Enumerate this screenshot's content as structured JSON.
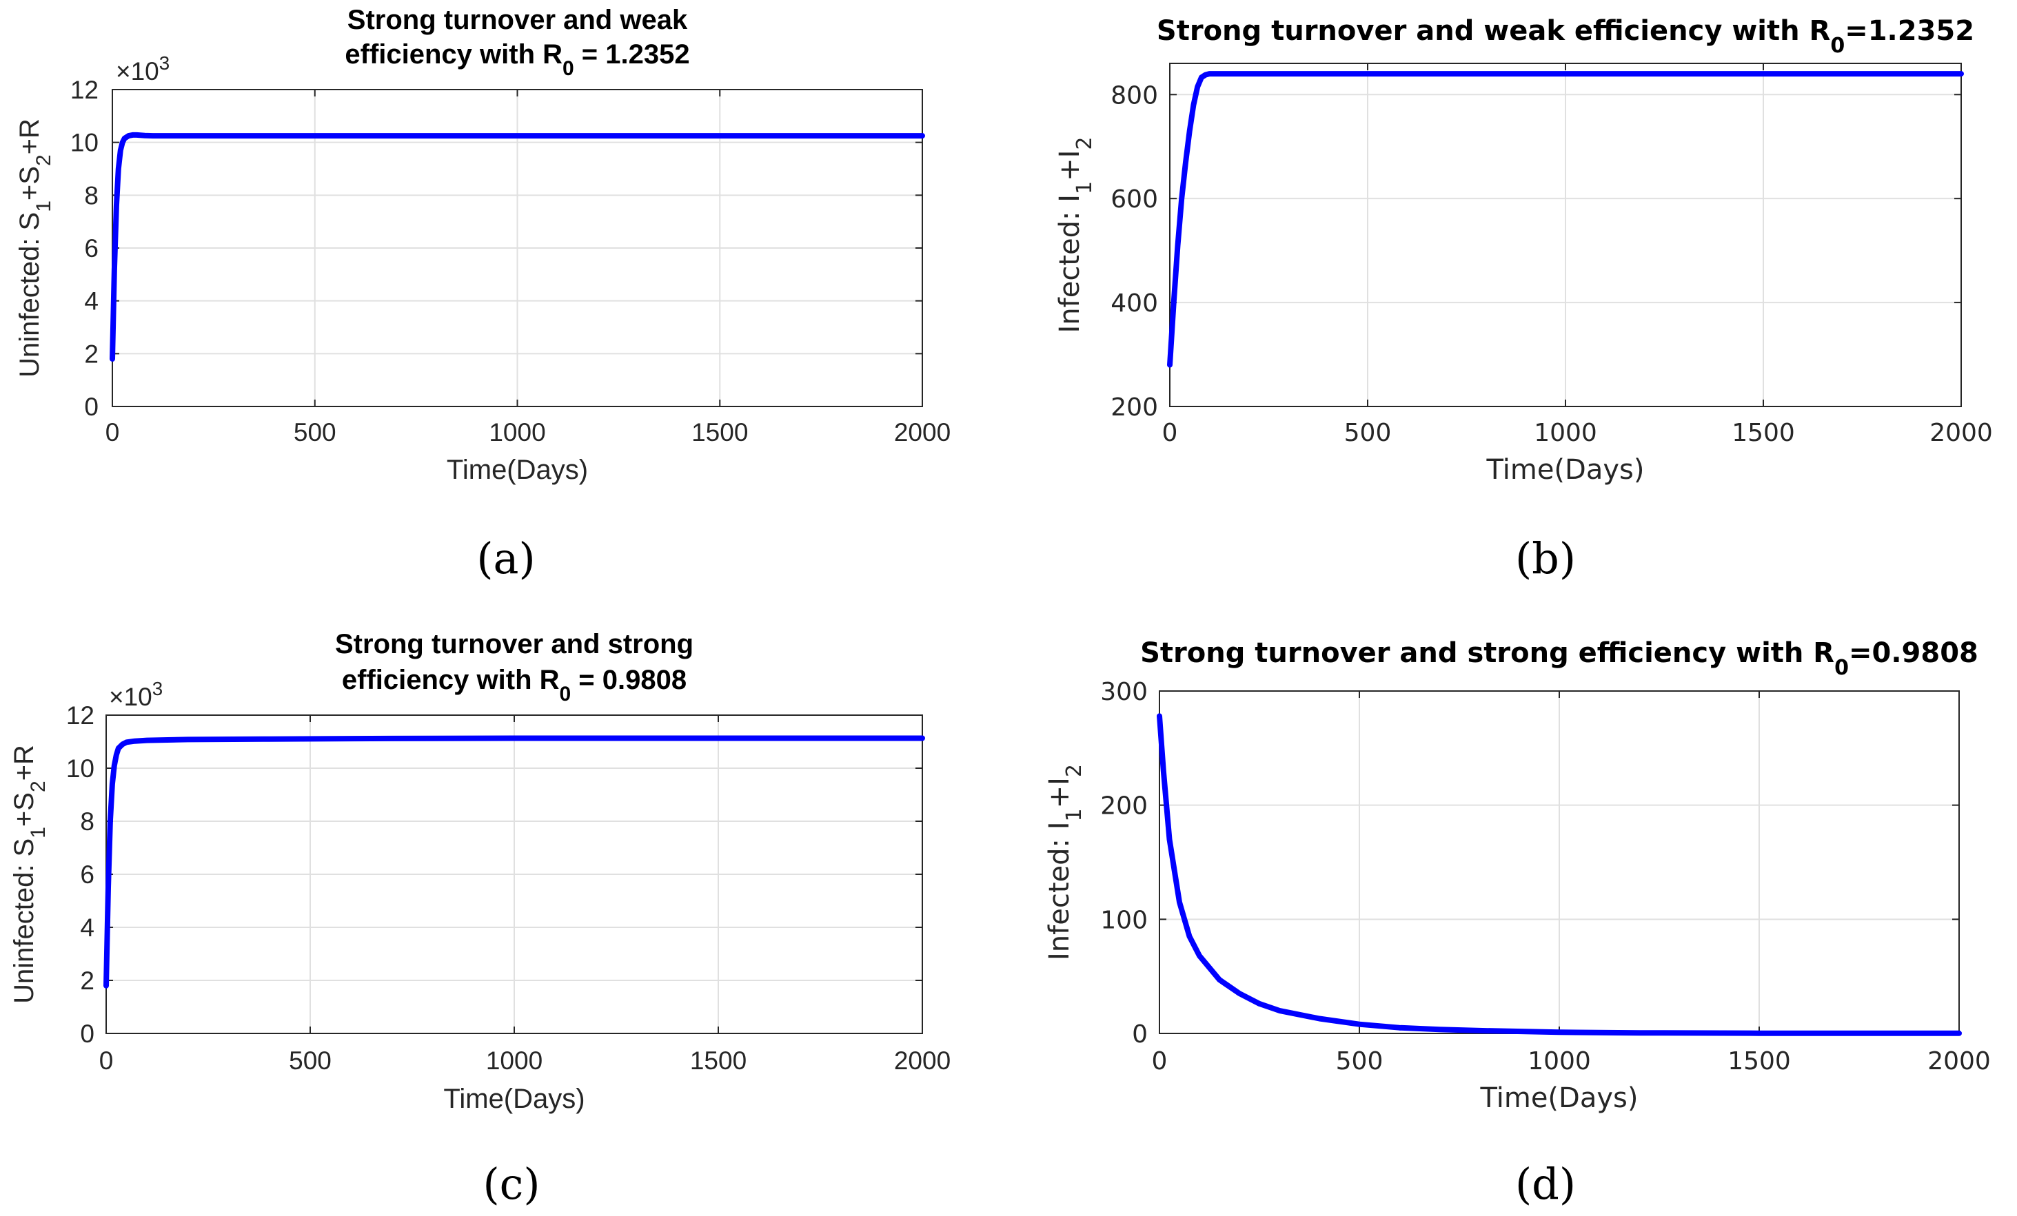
{
  "chart_data": [
    {
      "id": "a",
      "type": "line",
      "panel_label": "(a)",
      "title": [
        "Strong turnover and weak",
        "efficiency with R",
        "0",
        " = 1.2352"
      ],
      "xlabel": "Time(Days)",
      "ylabel": [
        "Uninfected: S",
        "1",
        "+S",
        "2",
        "+R"
      ],
      "xlim": [
        0,
        2000
      ],
      "ylim": [
        0,
        12
      ],
      "xticks": [
        "0",
        "500",
        "1000",
        "1500",
        "2000"
      ],
      "yticks": [
        "0",
        "2",
        "4",
        "6",
        "8",
        "10",
        "12"
      ],
      "multiplier": [
        "×10",
        "3"
      ],
      "grid": true,
      "series": [
        {
          "name": "S1+S2+R",
          "color": "#0000ff",
          "x": [
            0,
            5,
            10,
            15,
            20,
            25,
            30,
            40,
            50,
            60,
            80,
            100,
            200,
            500,
            1000,
            1500,
            2000
          ],
          "y": [
            1.8,
            5.2,
            7.6,
            9.0,
            9.7,
            10.0,
            10.15,
            10.25,
            10.28,
            10.28,
            10.26,
            10.25,
            10.25,
            10.25,
            10.25,
            10.25,
            10.25
          ]
        }
      ]
    },
    {
      "id": "b",
      "type": "line",
      "panel_label": "(b)",
      "title": [
        "Strong turnover and weak efficiency with R",
        "0",
        "=1.2352"
      ],
      "xlabel": "Time(Days)",
      "ylabel": [
        "Infected: I",
        "1",
        "+I",
        "2"
      ],
      "xlim": [
        0,
        2000
      ],
      "ylim": [
        200,
        860
      ],
      "xticks": [
        "0",
        "500",
        "1000",
        "1500",
        "2000"
      ],
      "yticks": [
        "200",
        "400",
        "600",
        "800"
      ],
      "ytick_values": [
        200,
        400,
        600,
        800
      ],
      "grid": true,
      "series": [
        {
          "name": "I1+I2",
          "color": "#0000ff",
          "x": [
            0,
            10,
            20,
            30,
            40,
            50,
            60,
            70,
            80,
            90,
            100,
            120,
            500,
            1000,
            1500,
            2000
          ],
          "y": [
            280,
            400,
            510,
            600,
            670,
            730,
            780,
            815,
            833,
            838,
            840,
            840,
            840,
            840,
            840,
            840
          ]
        }
      ]
    },
    {
      "id": "c",
      "type": "line",
      "panel_label": "(c)",
      "title": [
        "Strong turnover and strong",
        "efficiency with R",
        "0",
        " = 0.9808"
      ],
      "xlabel": "Time(Days)",
      "ylabel": [
        "Uninfected: S",
        "1",
        "+S",
        "2",
        "+R"
      ],
      "xlim": [
        0,
        2000
      ],
      "ylim": [
        0,
        12
      ],
      "xticks": [
        "0",
        "500",
        "1000",
        "1500",
        "2000"
      ],
      "yticks": [
        "0",
        "2",
        "4",
        "6",
        "8",
        "10",
        "12"
      ],
      "multiplier": [
        "×10",
        "3"
      ],
      "grid": true,
      "series": [
        {
          "name": "S1+S2+R",
          "color": "#0000ff",
          "x": [
            0,
            5,
            10,
            15,
            20,
            25,
            30,
            40,
            50,
            70,
            100,
            200,
            400,
            700,
            1000,
            1500,
            2000
          ],
          "y": [
            1.8,
            5.5,
            8.0,
            9.4,
            10.1,
            10.5,
            10.75,
            10.9,
            10.98,
            11.02,
            11.05,
            11.08,
            11.1,
            11.12,
            11.13,
            11.13,
            11.13
          ]
        }
      ]
    },
    {
      "id": "d",
      "type": "line",
      "panel_label": "(d)",
      "title": [
        "Strong turnover and strong efficiency with R",
        "0",
        "=0.9808"
      ],
      "xlabel": "Time(Days)",
      "ylabel": [
        "Infected: I",
        "1",
        "+I",
        "2"
      ],
      "xlim": [
        0,
        2000
      ],
      "ylim": [
        0,
        300
      ],
      "xticks": [
        "0",
        "500",
        "1000",
        "1500",
        "2000"
      ],
      "yticks": [
        "0",
        "100",
        "200",
        "300"
      ],
      "ytick_values": [
        0,
        100,
        200,
        300
      ],
      "grid": true,
      "series": [
        {
          "name": "I1+I2",
          "color": "#0000ff",
          "x": [
            0,
            10,
            25,
            50,
            75,
            100,
            150,
            200,
            250,
            300,
            400,
            500,
            600,
            700,
            800,
            1000,
            1200,
            1500,
            2000
          ],
          "y": [
            278,
            230,
            170,
            115,
            85,
            68,
            47,
            35,
            26,
            20,
            13,
            8,
            5,
            3.5,
            2.5,
            1,
            0.5,
            0.2,
            0.1
          ]
        }
      ]
    }
  ]
}
